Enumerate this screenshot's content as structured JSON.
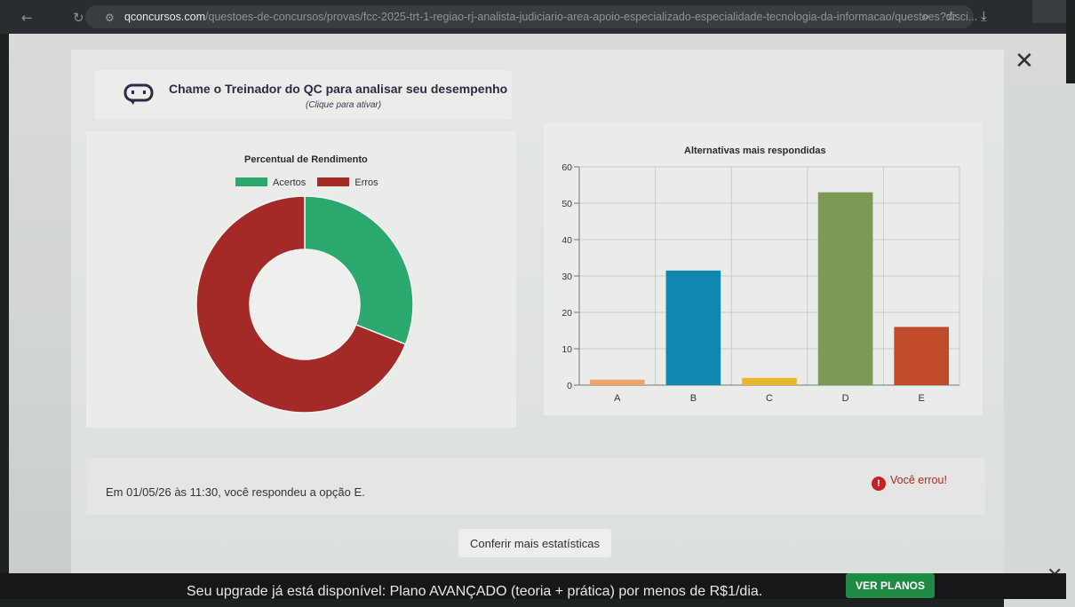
{
  "browser": {
    "url_host": "qconcursos.com",
    "url_path": "/questoes-de-concursos/provas/fcc-2025-trt-1-regiao-rj-analista-judiciario-area-apoio-especializado-especialidade-tecnologia-da-informacao/questoes?disci..."
  },
  "trainer": {
    "title": "Chame o Treinador do QC para analisar seu desempenho",
    "subtitle": "(Clique para ativar)"
  },
  "performance_chart": {
    "title": "Percentual de Rendimento",
    "legend": [
      {
        "label": "Acertos",
        "color": "#2aa86e"
      },
      {
        "label": "Erros",
        "color": "#a32a26"
      }
    ]
  },
  "answers_chart": {
    "title": "Alternativas mais respondidas"
  },
  "chart_data": [
    {
      "type": "pie",
      "title": "Percentual de Rendimento",
      "donut": true,
      "legend": "top",
      "categories": [
        "Acertos",
        "Erros"
      ],
      "values": [
        31,
        69
      ],
      "colors": [
        "#2aa86e",
        "#a32a26"
      ]
    },
    {
      "type": "bar",
      "title": "Alternativas mais respondidas",
      "categories": [
        "A",
        "B",
        "C",
        "D",
        "E"
      ],
      "values": [
        1.5,
        31.5,
        2,
        53,
        16
      ],
      "colors": [
        "#f0a26b",
        "#0f87b0",
        "#e9b72e",
        "#7d9a55",
        "#c04a2a"
      ],
      "ylim": [
        0,
        60
      ],
      "yticks": [
        0,
        10,
        20,
        30,
        40,
        50,
        60
      ],
      "grid": true
    }
  ],
  "feedback": {
    "message": "Em 01/05/26 às 11:30, você respondeu a opção E.",
    "result_icon": "!",
    "result": "Você errou!"
  },
  "stats_button": "Conferir mais estatísticas",
  "promo": {
    "text": "Seu upgrade já está disponível: Plano AVANÇADO (teoria + prática) por menos de R$1/dia.",
    "button": "VER PLANOS"
  }
}
